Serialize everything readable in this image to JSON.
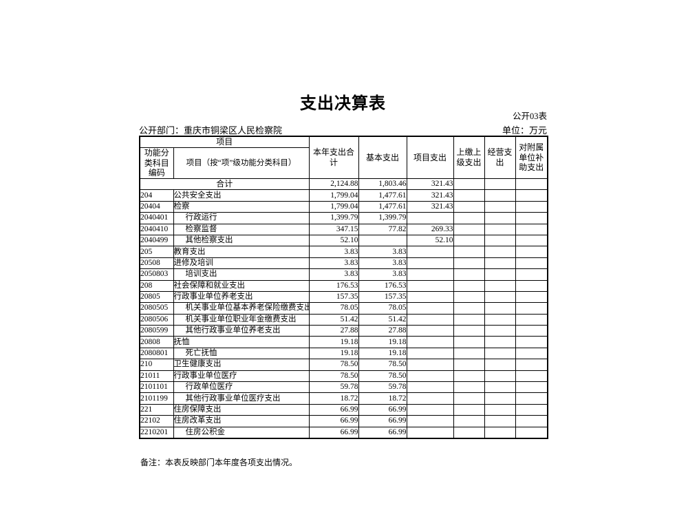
{
  "page": {
    "title": "支出决算表",
    "table_no": "公开03表",
    "department_label": "公开部门：重庆市铜梁区人民检察院",
    "unit_label": "单位：万元",
    "note": "备注：本表反映部门本年度各项支出情况。"
  },
  "colors": {
    "background": "#ffffff",
    "text": "#000000",
    "border": "#000000"
  },
  "table": {
    "header": {
      "group_project": "项目",
      "col_code": "功能分类科目编码",
      "col_name": "项目（按“项”级功能分类科目）",
      "col_total": "本年支出合计",
      "col_basic": "基本支出",
      "col_project": "项目支出",
      "col_upper": "上缴上级支出",
      "col_operating": "经营支出",
      "col_subsidy": "对附属单位补助支出"
    },
    "total_row": {
      "label": "合计",
      "total": "2,124.88",
      "basic": "1,803.46",
      "project": "321.43",
      "upper": "",
      "operating": "",
      "subsidy": ""
    },
    "rows": [
      {
        "code": "204",
        "name": "公共安全支出",
        "indent": false,
        "total": "1,799.04",
        "basic": "1,477.61",
        "project": "321.43",
        "upper": "",
        "operating": "",
        "subsidy": ""
      },
      {
        "code": "20404",
        "name": "检察",
        "indent": false,
        "total": "1,799.04",
        "basic": "1,477.61",
        "project": "321.43",
        "upper": "",
        "operating": "",
        "subsidy": ""
      },
      {
        "code": "2040401",
        "name": "行政运行",
        "indent": true,
        "total": "1,399.79",
        "basic": "1,399.79",
        "project": "",
        "upper": "",
        "operating": "",
        "subsidy": ""
      },
      {
        "code": "2040410",
        "name": "检察监督",
        "indent": true,
        "total": "347.15",
        "basic": "77.82",
        "project": "269.33",
        "upper": "",
        "operating": "",
        "subsidy": ""
      },
      {
        "code": "2040499",
        "name": "其他检察支出",
        "indent": true,
        "total": "52.10",
        "basic": "",
        "project": "52.10",
        "upper": "",
        "operating": "",
        "subsidy": ""
      },
      {
        "code": "205",
        "name": "教育支出",
        "indent": false,
        "total": "3.83",
        "basic": "3.83",
        "project": "",
        "upper": "",
        "operating": "",
        "subsidy": ""
      },
      {
        "code": "20508",
        "name": "进修及培训",
        "indent": false,
        "total": "3.83",
        "basic": "3.83",
        "project": "",
        "upper": "",
        "operating": "",
        "subsidy": ""
      },
      {
        "code": "2050803",
        "name": "培训支出",
        "indent": true,
        "total": "3.83",
        "basic": "3.83",
        "project": "",
        "upper": "",
        "operating": "",
        "subsidy": ""
      },
      {
        "code": "208",
        "name": "社会保障和就业支出",
        "indent": false,
        "total": "176.53",
        "basic": "176.53",
        "project": "",
        "upper": "",
        "operating": "",
        "subsidy": ""
      },
      {
        "code": "20805",
        "name": "行政事业单位养老支出",
        "indent": false,
        "total": "157.35",
        "basic": "157.35",
        "project": "",
        "upper": "",
        "operating": "",
        "subsidy": ""
      },
      {
        "code": "2080505",
        "name": "机关事业单位基本养老保险缴费支出",
        "indent": true,
        "total": "78.05",
        "basic": "78.05",
        "project": "",
        "upper": "",
        "operating": "",
        "subsidy": ""
      },
      {
        "code": "2080506",
        "name": "机关事业单位职业年金缴费支出",
        "indent": true,
        "total": "51.42",
        "basic": "51.42",
        "project": "",
        "upper": "",
        "operating": "",
        "subsidy": ""
      },
      {
        "code": "2080599",
        "name": "其他行政事业单位养老支出",
        "indent": true,
        "total": "27.88",
        "basic": "27.88",
        "project": "",
        "upper": "",
        "operating": "",
        "subsidy": ""
      },
      {
        "code": "20808",
        "name": "抚恤",
        "indent": false,
        "total": "19.18",
        "basic": "19.18",
        "project": "",
        "upper": "",
        "operating": "",
        "subsidy": ""
      },
      {
        "code": "2080801",
        "name": "死亡抚恤",
        "indent": true,
        "total": "19.18",
        "basic": "19.18",
        "project": "",
        "upper": "",
        "operating": "",
        "subsidy": ""
      },
      {
        "code": "210",
        "name": "卫生健康支出",
        "indent": false,
        "total": "78.50",
        "basic": "78.50",
        "project": "",
        "upper": "",
        "operating": "",
        "subsidy": ""
      },
      {
        "code": "21011",
        "name": "行政事业单位医疗",
        "indent": false,
        "total": "78.50",
        "basic": "78.50",
        "project": "",
        "upper": "",
        "operating": "",
        "subsidy": ""
      },
      {
        "code": "2101101",
        "name": "行政单位医疗",
        "indent": true,
        "total": "59.78",
        "basic": "59.78",
        "project": "",
        "upper": "",
        "operating": "",
        "subsidy": ""
      },
      {
        "code": "2101199",
        "name": "其他行政事业单位医疗支出",
        "indent": true,
        "total": "18.72",
        "basic": "18.72",
        "project": "",
        "upper": "",
        "operating": "",
        "subsidy": ""
      },
      {
        "code": "221",
        "name": "住房保障支出",
        "indent": false,
        "total": "66.99",
        "basic": "66.99",
        "project": "",
        "upper": "",
        "operating": "",
        "subsidy": ""
      },
      {
        "code": "22102",
        "name": "住房改革支出",
        "indent": false,
        "total": "66.99",
        "basic": "66.99",
        "project": "",
        "upper": "",
        "operating": "",
        "subsidy": ""
      },
      {
        "code": "2210201",
        "name": "住房公积金",
        "indent": true,
        "total": "66.99",
        "basic": "66.99",
        "project": "",
        "upper": "",
        "operating": "",
        "subsidy": ""
      }
    ]
  }
}
